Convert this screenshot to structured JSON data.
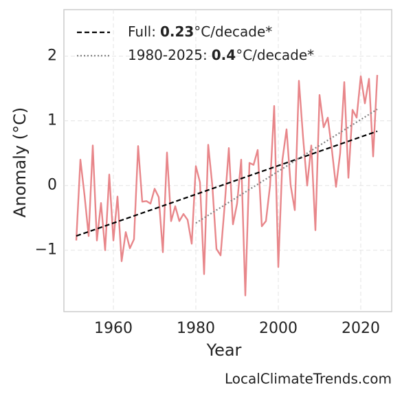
{
  "chart_data": {
    "type": "line",
    "xlabel": "Year",
    "ylabel": "Anomaly (°C)",
    "source": "LocalClimateTrends.com",
    "x": [
      1951,
      1952,
      1953,
      1954,
      1955,
      1956,
      1957,
      1958,
      1959,
      1960,
      1961,
      1962,
      1963,
      1964,
      1965,
      1966,
      1967,
      1968,
      1969,
      1970,
      1971,
      1972,
      1973,
      1974,
      1975,
      1976,
      1977,
      1978,
      1979,
      1980,
      1981,
      1982,
      1983,
      1984,
      1985,
      1986,
      1987,
      1988,
      1989,
      1990,
      1991,
      1992,
      1993,
      1994,
      1995,
      1996,
      1997,
      1998,
      1999,
      2000,
      2001,
      2002,
      2003,
      2004,
      2005,
      2006,
      2007,
      2008,
      2009,
      2010,
      2011,
      2012,
      2013,
      2014,
      2015,
      2016,
      2017,
      2018,
      2019,
      2020,
      2021,
      2022,
      2023,
      2024
    ],
    "series": [
      {
        "color": "#e8868a",
        "values": [
          -0.85,
          0.4,
          -0.15,
          -0.78,
          0.62,
          -0.85,
          -0.27,
          -1.0,
          0.17,
          -0.85,
          -0.17,
          -1.17,
          -0.72,
          -0.97,
          -0.83,
          0.61,
          -0.25,
          -0.24,
          -0.28,
          -0.05,
          -0.18,
          -1.03,
          0.51,
          -0.55,
          -0.32,
          -0.55,
          -0.44,
          -0.53,
          -0.9,
          0.3,
          0.05,
          -1.37,
          0.63,
          0.0,
          -0.98,
          -1.08,
          -0.3,
          0.58,
          -0.6,
          -0.28,
          0.4,
          -1.7,
          0.35,
          0.32,
          0.55,
          -0.63,
          -0.55,
          0.0,
          1.23,
          -1.26,
          0.4,
          0.87,
          0.0,
          -0.38,
          1.62,
          0.75,
          0.0,
          0.62,
          -0.69,
          1.4,
          0.9,
          1.05,
          0.55,
          -0.02,
          0.5,
          1.6,
          0.12,
          1.17,
          1.05,
          1.69,
          1.27,
          1.65,
          0.45,
          1.71
        ]
      },
      {
        "name": "Full:",
        "rate": 0.23,
        "unit": "°C/decade*",
        "color": "#000000",
        "dash": "dashed",
        "x": [
          1951,
          2024
        ],
        "values": [
          -0.78,
          0.84
        ]
      },
      {
        "name": "1980-2025:",
        "rate": 0.4,
        "unit": "°C/decade*",
        "color": "#808080",
        "dash": "dotted",
        "x": [
          1980,
          2024
        ],
        "values": [
          -0.58,
          1.18
        ]
      }
    ],
    "xlim": [
      1948,
      2027.5
    ],
    "ylim": [
      -1.95,
      2.72
    ],
    "xticks": [
      1960,
      1980,
      2000,
      2020
    ],
    "yticks": [
      {
        "value": -1,
        "label": "−1"
      },
      0,
      1,
      2
    ],
    "grid": true,
    "legend": "upper left"
  }
}
